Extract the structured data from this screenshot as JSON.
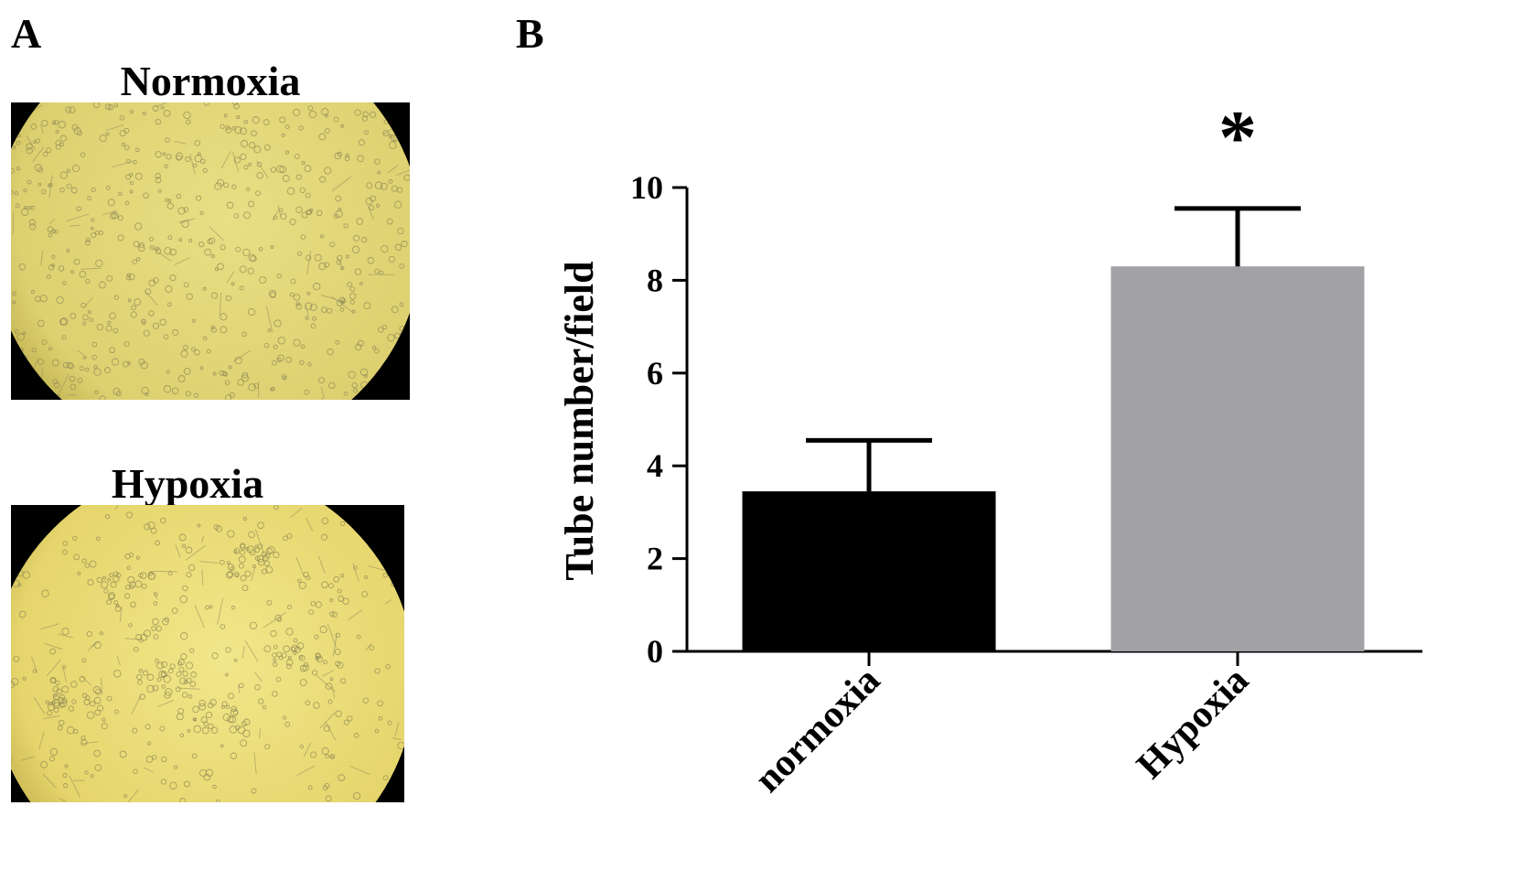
{
  "panels": {
    "a_label": "A",
    "b_label": "B"
  },
  "micrographs": [
    {
      "title": "Normoxia"
    },
    {
      "title": "Hypoxia"
    }
  ],
  "chart_data": {
    "type": "bar",
    "categories": [
      "normoxia",
      "Hypoxia"
    ],
    "values": [
      3.45,
      8.3
    ],
    "error": [
      1.1,
      1.25
    ],
    "colors": [
      "#000000",
      "#a2a1a6"
    ],
    "title": "",
    "xlabel": "",
    "ylabel": "Tube number/field",
    "ylim": [
      0,
      10
    ],
    "yticks": [
      0,
      2,
      4,
      6,
      8,
      10
    ],
    "annotations": [
      {
        "category": "Hypoxia",
        "text": "*"
      }
    ],
    "grid": false,
    "legend": "none"
  }
}
